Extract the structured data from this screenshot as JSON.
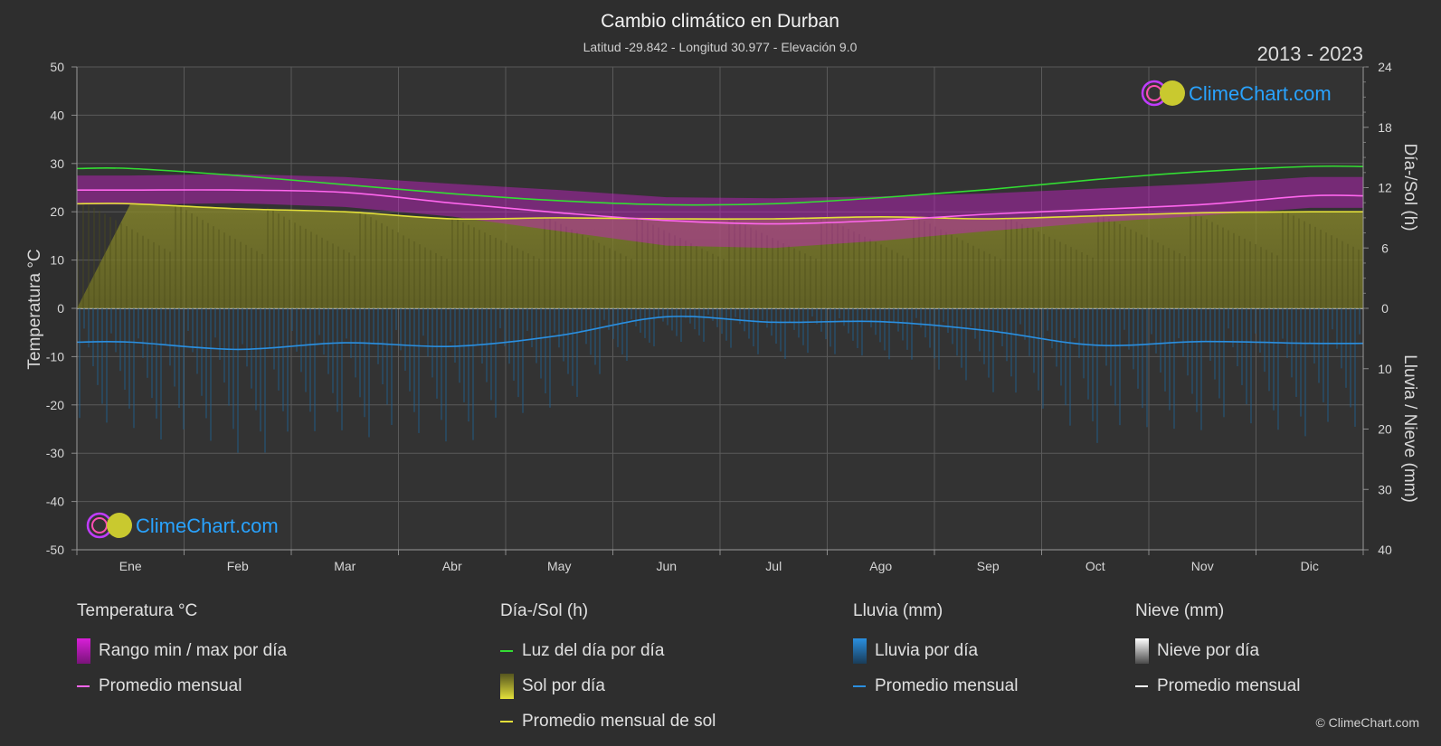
{
  "chart_data": {
    "type": "area",
    "title": "Cambio climático en Durban",
    "subtitle": "Latitud -29.842 - Longitud 30.977 - Elevación 9.0",
    "period": "2013 - 2023",
    "brand": "ClimeChart.com",
    "copyright": "© ClimeChart.com",
    "categories": [
      "Ene",
      "Feb",
      "Mar",
      "Abr",
      "May",
      "Jun",
      "Jul",
      "Ago",
      "Sep",
      "Oct",
      "Nov",
      "Dic"
    ],
    "y_left": {
      "label": "Temperatura °C",
      "range": [
        -50,
        50
      ],
      "ticks": [
        "50",
        "40",
        "30",
        "20",
        "10",
        "0",
        "-10",
        "-20",
        "-30",
        "-40",
        "-50"
      ]
    },
    "y_right_top": {
      "label": "Día-/Sol (h)",
      "range": [
        0,
        24
      ],
      "ticks": [
        "24",
        "18",
        "12",
        "6",
        "0"
      ]
    },
    "y_right_bottom": {
      "label": "Lluvia / Nieve (mm)",
      "range": [
        0,
        40
      ],
      "ticks": [
        "10",
        "20",
        "30",
        "40"
      ]
    },
    "series": [
      {
        "name": "Luz del día por día",
        "unit": "h",
        "color": "#33dd33",
        "values": [
          13.9,
          13.2,
          12.3,
          11.4,
          10.7,
          10.3,
          10.4,
          11.0,
          11.8,
          12.8,
          13.6,
          14.1
        ]
      },
      {
        "name": "Promedio mensual de sol",
        "unit": "h",
        "color": "#e3e03a",
        "values": [
          10.4,
          9.9,
          9.6,
          8.9,
          9.0,
          8.9,
          8.9,
          9.1,
          8.9,
          9.2,
          9.5,
          9.6
        ]
      },
      {
        "name": "Temperatura máxima diaria",
        "unit": "°C",
        "color": "#d020d0",
        "values": [
          27.5,
          27.8,
          27.2,
          25.8,
          24.5,
          23.0,
          22.8,
          23.2,
          23.8,
          24.8,
          25.8,
          27.2
        ]
      },
      {
        "name": "Temperatura mínima diaria",
        "unit": "°C",
        "color": "#d020d0",
        "values": [
          21.5,
          21.8,
          21.0,
          19.0,
          16.0,
          13.0,
          12.5,
          14.0,
          16.0,
          17.8,
          19.2,
          20.8
        ]
      },
      {
        "name": "Promedio mensual",
        "unit": "°C",
        "color": "#ff66ee",
        "values": [
          24.5,
          24.5,
          24.0,
          21.8,
          19.8,
          18.2,
          17.5,
          18.2,
          19.5,
          20.5,
          21.5,
          23.3
        ]
      },
      {
        "name": "Promedio mensual de lluvia",
        "unit": "mm",
        "color": "#2a8fe0",
        "values": [
          5.6,
          6.8,
          5.7,
          6.3,
          4.5,
          1.4,
          2.3,
          2.2,
          3.7,
          6.1,
          5.5,
          5.8
        ]
      }
    ],
    "legend": [
      {
        "header": "Temperatura °C",
        "items": [
          {
            "label": "Rango min / max por día",
            "swatch": "block",
            "color": "#d81fd8"
          },
          {
            "label": "Promedio mensual",
            "swatch": "line",
            "color": "#ff66ee"
          }
        ]
      },
      {
        "header": "Día-/Sol (h)",
        "items": [
          {
            "label": "Luz del día por día",
            "swatch": "line",
            "color": "#33dd33"
          },
          {
            "label": "Sol por día",
            "swatch": "block",
            "color": "#d6d63a"
          },
          {
            "label": "Promedio mensual de sol",
            "swatch": "line",
            "color": "#e3e03a"
          }
        ]
      },
      {
        "header": "Lluvia (mm)",
        "items": [
          {
            "label": "Lluvia por día",
            "swatch": "block",
            "color": "#2a8fe0"
          },
          {
            "label": "Promedio mensual",
            "swatch": "line",
            "color": "#2a8fe0"
          }
        ]
      },
      {
        "header": "Nieve (mm)",
        "items": [
          {
            "label": "Nieve por día",
            "swatch": "block",
            "color": "#cfcfcf"
          },
          {
            "label": "Promedio mensual",
            "swatch": "line",
            "color": "#ffffff"
          }
        ]
      }
    ]
  }
}
